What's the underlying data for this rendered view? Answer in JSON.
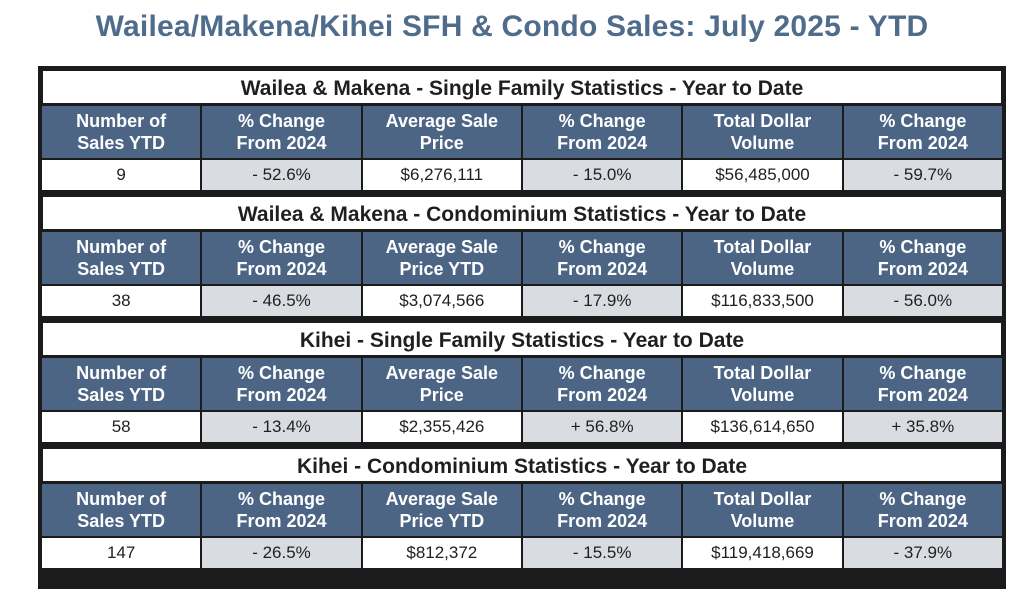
{
  "title": "Wailea/Makena/Kihei SFH & Condo Sales: July 2025 - YTD",
  "sections": [
    {
      "title": "Wailea & Makena - Single Family Statistics - Year to Date",
      "headers": [
        "Number of\nSales YTD",
        "% Change\nFrom 2024",
        "Average Sale\nPrice",
        "% Change\nFrom 2024",
        "Total Dollar\nVolume",
        "% Change\nFrom 2024"
      ],
      "values": [
        "9",
        "- 52.6%",
        "$6,276,111",
        "- 15.0%",
        "$56,485,000",
        "- 59.7%"
      ]
    },
    {
      "title": "Wailea & Makena - Condominium Statistics - Year to Date",
      "headers": [
        "Number of\nSales YTD",
        "% Change\nFrom 2024",
        "Average Sale\nPrice YTD",
        "% Change\nFrom 2024",
        "Total Dollar\nVolume",
        "% Change\nFrom 2024"
      ],
      "values": [
        "38",
        "- 46.5%",
        "$3,074,566",
        "- 17.9%",
        "$116,833,500",
        "- 56.0%"
      ]
    },
    {
      "title": "Kihei - Single Family Statistics - Year to Date",
      "headers": [
        "Number of\nSales YTD",
        "% Change\nFrom 2024",
        "Average Sale\nPrice",
        "% Change\nFrom 2024",
        "Total Dollar\nVolume",
        "% Change\nFrom 2024"
      ],
      "values": [
        "58",
        "- 13.4%",
        "$2,355,426",
        "+ 56.8%",
        "$136,614,650",
        "+ 35.8%"
      ]
    },
    {
      "title": "Kihei - Condominium Statistics - Year to Date",
      "headers": [
        "Number of\nSales YTD",
        "% Change\nFrom 2024",
        "Average Sale\nPrice YTD",
        "% Change\nFrom 2024",
        "Total Dollar\nVolume",
        "% Change\nFrom 2024"
      ],
      "values": [
        "147",
        "- 26.5%",
        "$812,372",
        "- 15.5%",
        "$119,418,669",
        "- 37.9%"
      ]
    }
  ],
  "colors": {
    "title": "#4f6c8c",
    "header_bg": "#4c6585",
    "shaded_cell": "#d9dde2",
    "border": "#1b1b1b"
  }
}
